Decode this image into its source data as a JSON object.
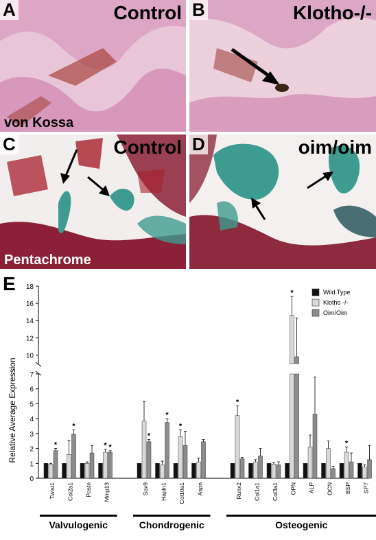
{
  "panels": {
    "A": {
      "letter": "A",
      "title": "Control",
      "stain": "von Kossa",
      "colors": {
        "bg": "#e9c6d7",
        "tissue": "#c76aa0",
        "rbc": "#a8463f"
      }
    },
    "B": {
      "letter": "B",
      "title": "Klotho-/-",
      "colors": {
        "bg": "#ecd0dc",
        "tissue": "#c56aa0",
        "rbc": "#a24a42",
        "calc": "#3a2416"
      }
    },
    "C": {
      "letter": "C",
      "title": "Control",
      "stain": "Pentachrome",
      "colors": {
        "bg": "#f2eeed",
        "muscle": "#8c2036",
        "valve": "#3e9b8f",
        "rbc": "#a71f2c"
      }
    },
    "D": {
      "letter": "D",
      "title": "oim/oim",
      "colors": {
        "bg": "#f3f0ef",
        "muscle": "#8e2a3e",
        "valve": "#3d9b8f",
        "valve_dark": "#1f4f53"
      }
    }
  },
  "chart_letter": "E",
  "chart_data": {
    "type": "bar",
    "ylabel": "Relative Average Expression",
    "ylim_lower": [
      0,
      7
    ],
    "ylim_upper": [
      9,
      18
    ],
    "y_ticks_lower": [
      "0",
      "1",
      "2",
      "3",
      "4",
      "5",
      "6",
      "7"
    ],
    "y_ticks_upper": [
      "10",
      "12",
      "14",
      "16",
      "18"
    ],
    "legend": [
      "Wild Type",
      "Klotho -/-",
      "Oim/Oim"
    ],
    "series_colors": [
      "#111111",
      "#d9d9d9",
      "#8c8c8c"
    ],
    "groups": [
      {
        "name": "Valvulogenic",
        "genes": [
          "Twist1",
          "Col2a1",
          "Postn",
          "Mmp13"
        ]
      },
      {
        "name": "Chondrogenic",
        "genes": [
          "Sox9",
          "Hapln1",
          "Col10a1",
          "Aspn"
        ]
      },
      {
        "name": "Osteogenic",
        "genes": [
          "Runx2",
          "Col1a1",
          "Col3a1",
          "OPN",
          "ALP",
          "OCN",
          "BSP",
          "SP7"
        ]
      }
    ],
    "categories": [
      "Twist1",
      "Col2a1",
      "Postn",
      "Mmp13",
      "Sox9",
      "Hapln1",
      "Col10a1",
      "Aspn",
      "Runx2",
      "Col1a1",
      "Col3a1",
      "OPN",
      "ALP",
      "OCN",
      "BSP",
      "SP7"
    ],
    "series": [
      {
        "name": "Wild Type",
        "values": [
          1,
          1,
          1,
          1,
          1,
          1,
          1,
          1,
          1,
          1,
          1,
          1,
          1,
          1,
          1,
          1
        ],
        "errors": [
          0,
          0,
          0,
          0,
          0,
          0,
          0,
          0,
          0,
          0,
          0,
          0,
          0,
          0,
          0,
          0
        ]
      },
      {
        "name": "Klotho -/-",
        "values": [
          0.95,
          1.6,
          1.0,
          1.75,
          3.85,
          0.9,
          2.8,
          1.1,
          4.2,
          1.1,
          0.95,
          14.6,
          2.1,
          2.0,
          1.75,
          0.75
        ],
        "errors": [
          0.05,
          0.95,
          0.1,
          0.2,
          1.3,
          0.25,
          0.45,
          0.25,
          0.65,
          0.15,
          0.1,
          2.2,
          0.8,
          0.5,
          0.35,
          0.15
        ],
        "sig": [
          false,
          false,
          false,
          true,
          false,
          false,
          true,
          false,
          true,
          false,
          false,
          true,
          false,
          false,
          true,
          false
        ]
      },
      {
        "name": "Oim/Oim",
        "values": [
          1.85,
          2.95,
          1.7,
          1.75,
          2.45,
          3.75,
          2.2,
          2.45,
          1.3,
          1.5,
          0.9,
          9.8,
          4.3,
          0.65,
          1.1,
          1.25
        ],
        "errors": [
          0.15,
          0.3,
          0.5,
          0.1,
          0.15,
          0.25,
          0.95,
          0.15,
          0.1,
          0.5,
          0.2,
          4.5,
          2.5,
          0.15,
          0.6,
          0.95
        ],
        "sig": [
          true,
          true,
          false,
          true,
          true,
          true,
          false,
          false,
          false,
          false,
          false,
          false,
          false,
          false,
          false,
          false
        ]
      }
    ]
  }
}
